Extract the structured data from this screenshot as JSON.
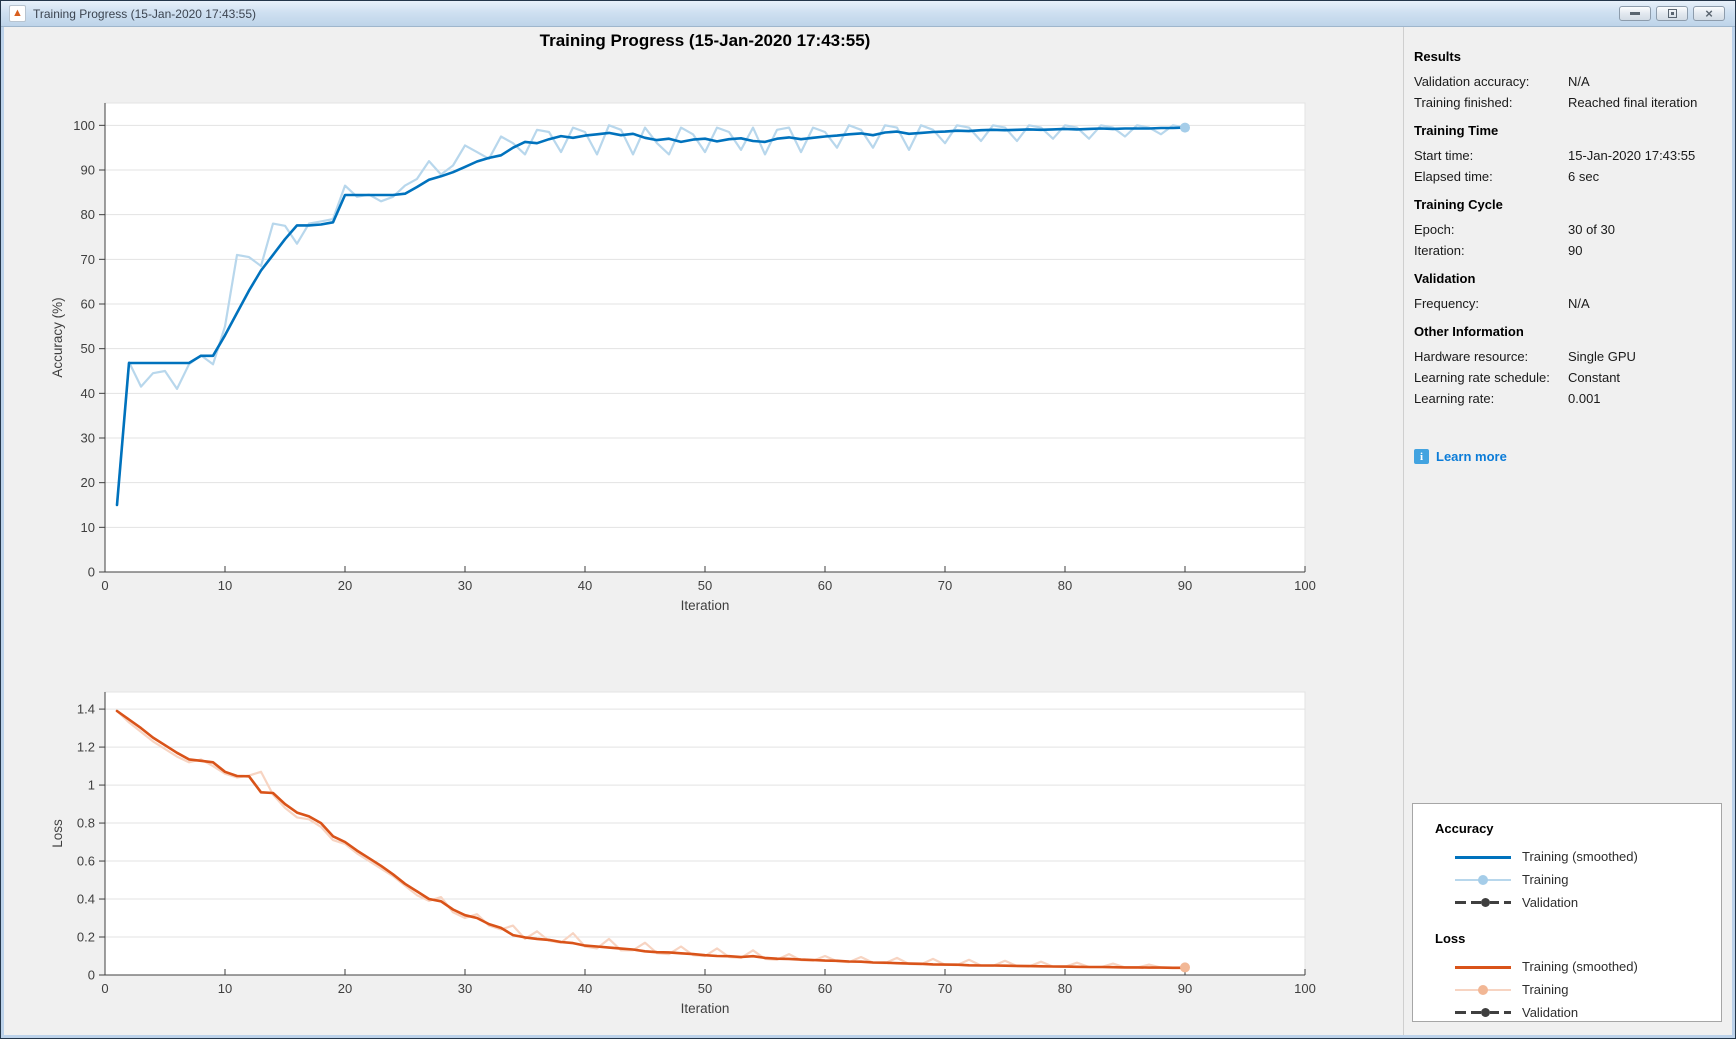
{
  "window": {
    "title": "Training Progress (15-Jan-2020 17:43:55)",
    "controls": {
      "minimize": "minimize",
      "restore": "restore",
      "close": "close"
    },
    "close_glyph": "×"
  },
  "main": {
    "title": "Training Progress (15-Jan-2020 17:43:55)"
  },
  "panel": {
    "sections": [
      {
        "title": "Results",
        "rows": [
          [
            "Validation accuracy:",
            "N/A"
          ],
          [
            "Training finished:",
            "Reached final iteration"
          ]
        ]
      },
      {
        "title": "Training Time",
        "rows": [
          [
            "Start time:",
            "15-Jan-2020 17:43:55"
          ],
          [
            "Elapsed time:",
            "6 sec"
          ]
        ]
      },
      {
        "title": "Training Cycle",
        "rows": [
          [
            "Epoch:",
            "30 of 30"
          ],
          [
            "Iteration:",
            "90"
          ]
        ]
      },
      {
        "title": "Validation",
        "rows": [
          [
            "Frequency:",
            "N/A"
          ]
        ]
      },
      {
        "title": "Other Information",
        "rows": [
          [
            "Hardware resource:",
            "Single GPU"
          ],
          [
            "Learning rate schedule:",
            "Constant"
          ],
          [
            "Learning rate:",
            "0.001"
          ]
        ]
      }
    ],
    "learn_more": "Learn more",
    "info_icon_glyph": "i"
  },
  "legend": {
    "groups": [
      {
        "title": "Accuracy",
        "items": [
          {
            "label": "Training (smoothed)"
          },
          {
            "label": "Training"
          },
          {
            "label": "Validation"
          }
        ]
      },
      {
        "title": "Loss",
        "items": [
          {
            "label": "Training (smoothed)"
          },
          {
            "label": "Training"
          },
          {
            "label": "Validation"
          }
        ]
      }
    ]
  },
  "colors": {
    "accuracy_smoothed": "#0072bd",
    "accuracy_raw": "#b8d7ec",
    "accuracy_marker": "#a5cde9",
    "loss_smoothed": "#d95319",
    "loss_raw": "#f7d4c2",
    "loss_marker": "#f2b795",
    "validation": "#3f3f3f",
    "link": "#0b7cd8",
    "grid": "#e3e3e3",
    "axis": "#3f3f3f",
    "background": "#f0f0f0"
  },
  "chart_data": [
    {
      "type": "line",
      "title": "Training Progress (15-Jan-2020 17:43:55)",
      "xlabel": "Iteration",
      "ylabel": "Accuracy (%)",
      "xlim": [
        0,
        100
      ],
      "ylim": [
        0,
        105
      ],
      "xticks": [
        0,
        10,
        20,
        30,
        40,
        50,
        60,
        70,
        80,
        90,
        100
      ],
      "yticks": [
        0,
        10,
        20,
        30,
        40,
        50,
        60,
        70,
        80,
        90,
        100
      ],
      "ytick_labels": [
        "0",
        "10",
        "20",
        "30",
        "40",
        "50",
        "60",
        "70",
        "80",
        "90",
        "100"
      ],
      "grid": "horizontal",
      "x_start": 1,
      "series": [
        {
          "name": "Training",
          "color": "#b8d7ec",
          "width": 2.2,
          "end_marker": true,
          "marker_color": "#a5cde9",
          "values": [
            15,
            47,
            41.5,
            44.5,
            45,
            41,
            46.5,
            48.5,
            46.5,
            55,
            71,
            70.5,
            68.5,
            78,
            77.5,
            73.5,
            78,
            78.5,
            79,
            86.5,
            84,
            84.5,
            83,
            84,
            86.5,
            88,
            92,
            89,
            91,
            95.5,
            94,
            92.5,
            97.5,
            96,
            93.5,
            99,
            98.5,
            94,
            99.5,
            98.5,
            93.5,
            100,
            99,
            93.5,
            99.5,
            96,
            93.5,
            99.5,
            98,
            94,
            99.5,
            98.5,
            94.5,
            99.5,
            93.5,
            99,
            99.5,
            94,
            99.5,
            98.5,
            95,
            100,
            99,
            95,
            100,
            99.5,
            94.5,
            100,
            99,
            96,
            100,
            99.5,
            96.5,
            100,
            99.5,
            96.5,
            100,
            99.5,
            97,
            100,
            99.5,
            97,
            100,
            99.5,
            97.5,
            100,
            99.5,
            98,
            100,
            99.5
          ]
        },
        {
          "name": "Training (smoothed)",
          "color": "#0072bd",
          "width": 2.6,
          "values": [
            15,
            46.8,
            46.8,
            46.8,
            46.8,
            46.8,
            46.8,
            48.4,
            48.4,
            53,
            58,
            63,
            67.5,
            71,
            74.5,
            77.6,
            77.6,
            77.8,
            78.3,
            84.4,
            84.4,
            84.4,
            84.4,
            84.4,
            84.7,
            86.2,
            87.8,
            88.6,
            89.5,
            90.7,
            91.9,
            92.7,
            93.3,
            95,
            96.3,
            96,
            96.9,
            97.6,
            97.2,
            97.7,
            98,
            98.3,
            97.8,
            98.1,
            97.2,
            96.7,
            97,
            96.3,
            96.8,
            97,
            96.4,
            96.9,
            97.1,
            96.5,
            96.3,
            97,
            97.3,
            96.9,
            97.2,
            97.5,
            97.7,
            98,
            98.2,
            97.8,
            98.4,
            98.6,
            98.1,
            98.3,
            98.5,
            98.6,
            98.8,
            98.7,
            98.9,
            99,
            98.9,
            99,
            99.1,
            99,
            99.1,
            99.2,
            99.1,
            99.2,
            99.3,
            99.2,
            99.3,
            99.3,
            99.3,
            99.4,
            99.4,
            99.5
          ]
        }
      ]
    },
    {
      "type": "line",
      "title": "",
      "xlabel": "Iteration",
      "ylabel": "Loss",
      "xlim": [
        0,
        100
      ],
      "ylim": [
        0,
        1.49
      ],
      "xticks": [
        0,
        10,
        20,
        30,
        40,
        50,
        60,
        70,
        80,
        90,
        100
      ],
      "yticks": [
        0,
        0.2,
        0.4,
        0.6,
        0.8,
        1,
        1.2,
        1.4
      ],
      "ytick_labels": [
        "0",
        "0.2",
        "0.4",
        "0.6",
        "0.8",
        "1",
        "1.2",
        "1.4"
      ],
      "grid": "horizontal",
      "x_start": 1,
      "series": [
        {
          "name": "Training",
          "color": "#f7d4c2",
          "width": 2.2,
          "end_marker": true,
          "marker_color": "#f2b795",
          "values": [
            1.39,
            1.33,
            1.28,
            1.23,
            1.19,
            1.15,
            1.12,
            1.135,
            1.1,
            1.06,
            1.04,
            1.05,
            1.07,
            0.95,
            0.88,
            0.83,
            0.82,
            0.78,
            0.71,
            0.69,
            0.64,
            0.6,
            0.56,
            0.52,
            0.47,
            0.42,
            0.39,
            0.41,
            0.33,
            0.3,
            0.32,
            0.26,
            0.24,
            0.26,
            0.19,
            0.23,
            0.18,
            0.17,
            0.22,
            0.15,
            0.14,
            0.19,
            0.13,
            0.13,
            0.17,
            0.115,
            0.11,
            0.15,
            0.105,
            0.1,
            0.14,
            0.095,
            0.09,
            0.13,
            0.085,
            0.08,
            0.11,
            0.078,
            0.075,
            0.1,
            0.072,
            0.068,
            0.095,
            0.064,
            0.062,
            0.09,
            0.058,
            0.056,
            0.085,
            0.054,
            0.052,
            0.08,
            0.05,
            0.048,
            0.075,
            0.047,
            0.045,
            0.07,
            0.044,
            0.043,
            0.065,
            0.042,
            0.041,
            0.06,
            0.04,
            0.039,
            0.055,
            0.039,
            0.038,
            0.04
          ]
        },
        {
          "name": "Training (smoothed)",
          "color": "#d95319",
          "width": 2.6,
          "values": [
            1.39,
            1.345,
            1.3,
            1.25,
            1.21,
            1.17,
            1.135,
            1.128,
            1.12,
            1.07,
            1.048,
            1.046,
            0.962,
            0.958,
            0.9,
            0.855,
            0.835,
            0.8,
            0.73,
            0.7,
            0.655,
            0.615,
            0.575,
            0.53,
            0.48,
            0.44,
            0.4,
            0.388,
            0.345,
            0.315,
            0.3,
            0.268,
            0.248,
            0.21,
            0.198,
            0.19,
            0.185,
            0.174,
            0.168,
            0.155,
            0.15,
            0.144,
            0.139,
            0.134,
            0.125,
            0.12,
            0.119,
            0.114,
            0.11,
            0.104,
            0.1,
            0.099,
            0.095,
            0.099,
            0.09,
            0.086,
            0.085,
            0.081,
            0.079,
            0.076,
            0.075,
            0.071,
            0.07,
            0.066,
            0.065,
            0.062,
            0.06,
            0.059,
            0.056,
            0.055,
            0.054,
            0.051,
            0.05,
            0.05,
            0.049,
            0.048,
            0.047,
            0.046,
            0.045,
            0.044,
            0.043,
            0.042,
            0.042,
            0.041,
            0.04,
            0.04,
            0.039,
            0.039,
            0.038,
            0.038
          ]
        }
      ]
    }
  ]
}
